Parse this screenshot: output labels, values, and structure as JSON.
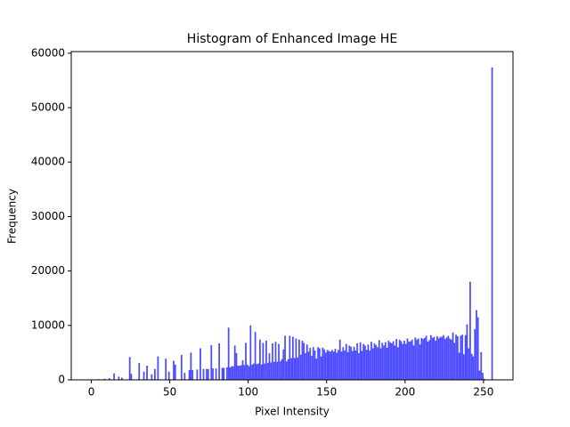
{
  "chart_data": {
    "type": "histogram",
    "title": "Histogram of Enhanced Image HE",
    "x_label": "Pixel Intensity",
    "y_label": "Frequency",
    "color": "#4d4dff",
    "bins": [
      0,
      1,
      2,
      3,
      4,
      5,
      6,
      7,
      8,
      9,
      10,
      11,
      12,
      13,
      14,
      15,
      16,
      17,
      18,
      19,
      20,
      21,
      22,
      23,
      24,
      25,
      26,
      27,
      28,
      29,
      30,
      31,
      32,
      33,
      34,
      35,
      36,
      37,
      38,
      39,
      40,
      41,
      42,
      43,
      44,
      45,
      46,
      47,
      48,
      49,
      50,
      51,
      52,
      53,
      54,
      55,
      56,
      57,
      58,
      59,
      60,
      61,
      62,
      63,
      64,
      65,
      66,
      67,
      68,
      69,
      70,
      71,
      72,
      73,
      74,
      75,
      76,
      77,
      78,
      79,
      80,
      81,
      82,
      83,
      84,
      85,
      86,
      87,
      88,
      89,
      90,
      91,
      92,
      93,
      94,
      95,
      96,
      97,
      98,
      99,
      100,
      101,
      102,
      103,
      104,
      105,
      106,
      107,
      108,
      109,
      110,
      111,
      112,
      113,
      114,
      115,
      116,
      117,
      118,
      119,
      120,
      121,
      122,
      123,
      124,
      125,
      126,
      127,
      128,
      129,
      130,
      131,
      132,
      133,
      134,
      135,
      136,
      137,
      138,
      139,
      140,
      141,
      142,
      143,
      144,
      145,
      146,
      147,
      148,
      149,
      150,
      151,
      152,
      153,
      154,
      155,
      156,
      157,
      158,
      159,
      160,
      161,
      162,
      163,
      164,
      165,
      166,
      167,
      168,
      169,
      170,
      171,
      172,
      173,
      174,
      175,
      176,
      177,
      178,
      179,
      180,
      181,
      182,
      183,
      184,
      185,
      186,
      187,
      188,
      189,
      190,
      191,
      192,
      193,
      194,
      195,
      196,
      197,
      198,
      199,
      200,
      201,
      202,
      203,
      204,
      205,
      206,
      207,
      208,
      209,
      210,
      211,
      212,
      213,
      214,
      215,
      216,
      217,
      218,
      219,
      220,
      221,
      222,
      223,
      224,
      225,
      226,
      227,
      228,
      229,
      230,
      231,
      232,
      233,
      234,
      235,
      236,
      237,
      238,
      239,
      240,
      241,
      242,
      243,
      244,
      245,
      246,
      247,
      248,
      249,
      250,
      251,
      252,
      253,
      254,
      255,
      256
    ],
    "counts": [
      0,
      0,
      0,
      0,
      150,
      0,
      0,
      0,
      200,
      0,
      0,
      300,
      0,
      0,
      1200,
      0,
      0,
      600,
      0,
      400,
      0,
      0,
      0,
      0,
      4200,
      1100,
      0,
      0,
      0,
      0,
      3100,
      0,
      0,
      1500,
      0,
      2600,
      0,
      0,
      1000,
      0,
      2000,
      0,
      4300,
      0,
      0,
      0,
      0,
      3900,
      0,
      1500,
      0,
      0,
      3500,
      2800,
      0,
      0,
      0,
      4600,
      0,
      1300,
      0,
      0,
      1800,
      5000,
      1800,
      0,
      0,
      1900,
      0,
      5800,
      0,
      2000,
      0,
      2000,
      2000,
      0,
      6400,
      2100,
      0,
      2100,
      0,
      6700,
      0,
      2200,
      2200,
      0,
      2300,
      9600,
      2300,
      2500,
      2500,
      6300,
      4900,
      2600,
      2600,
      2700,
      3600,
      2700,
      6800,
      2800,
      2500,
      10000,
      2800,
      3000,
      8800,
      2900,
      3000,
      7400,
      2800,
      6800,
      3000,
      7200,
      3100,
      4900,
      3200,
      6700,
      3300,
      7000,
      3300,
      6600,
      3400,
      3800,
      5600,
      8100,
      3400,
      3800,
      8100,
      4000,
      7900,
      4000,
      7600,
      4100,
      7400,
      4600,
      7200,
      6800,
      4900,
      6500,
      5200,
      5900,
      4400,
      6000,
      5400,
      3900,
      6000,
      5800,
      4300,
      5900,
      5600,
      5000,
      5500,
      5300,
      5200,
      5500,
      5200,
      5700,
      5000,
      5500,
      7400,
      5200,
      6000,
      5400,
      6600,
      5100,
      6300,
      6100,
      5300,
      6100,
      5400,
      6700,
      4900,
      6900,
      5300,
      6600,
      6300,
      5500,
      6500,
      5400,
      7000,
      5800,
      6700,
      6400,
      6000,
      7300,
      5800,
      6800,
      6300,
      6900,
      5900,
      7200,
      6900,
      6700,
      7100,
      6300,
      7500,
      6000,
      7400,
      7100,
      6600,
      7200,
      6600,
      7600,
      7000,
      7100,
      7400,
      6300,
      7800,
      7400,
      7600,
      6500,
      7700,
      7500,
      7700,
      8100,
      7000,
      7300,
      8200,
      7700,
      7900,
      7200,
      8000,
      7600,
      7900,
      7900,
      8200,
      7500,
      7800,
      8100,
      7600,
      7400,
      8700,
      6800,
      8300,
      8000,
      5000,
      8100,
      8300,
      4700,
      8200,
      10200,
      5800,
      18000,
      4800,
      4300,
      9300,
      12800,
      11500,
      1700,
      5100,
      1300,
      200,
      0,
      0,
      0,
      0,
      57400
    ],
    "xlim": [
      -12.8,
      268.8
    ],
    "xticks": [
      0,
      50,
      100,
      150,
      200,
      250
    ],
    "ylim": [
      0,
      60300
    ],
    "yticks": [
      0,
      10000,
      20000,
      30000,
      40000,
      50000,
      60000
    ]
  }
}
